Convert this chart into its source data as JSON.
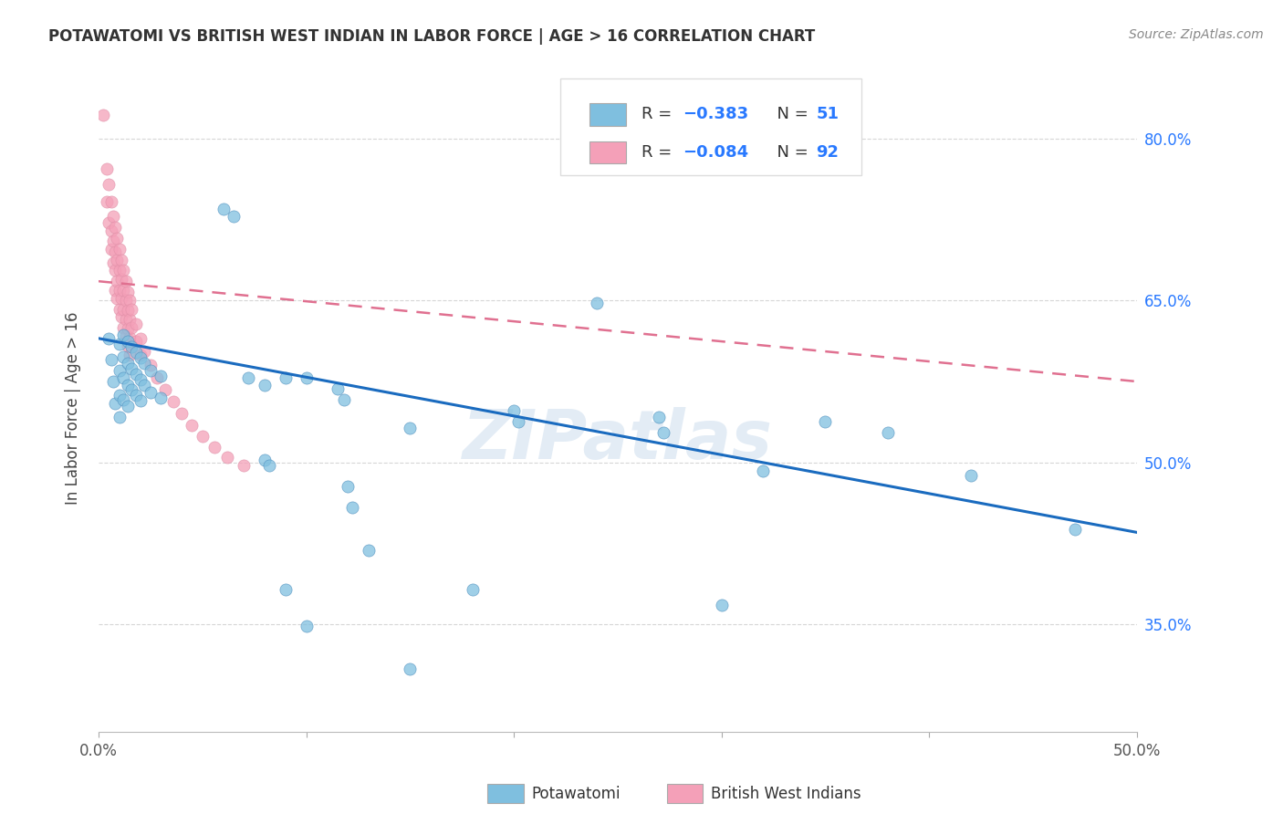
{
  "title": "POTAWATOMI VS BRITISH WEST INDIAN IN LABOR FORCE | AGE > 16 CORRELATION CHART",
  "source": "Source: ZipAtlas.com",
  "ylabel": "In Labor Force | Age > 16",
  "x_min": 0.0,
  "x_max": 0.5,
  "y_min": 0.25,
  "y_max": 0.85,
  "y_ticks": [
    0.35,
    0.5,
    0.65,
    0.8
  ],
  "y_tick_labels": [
    "35.0%",
    "50.0%",
    "65.0%",
    "80.0%"
  ],
  "blue_color": "#7fbfdf",
  "pink_color": "#f4a0b8",
  "trendline_blue": "#1a6bbf",
  "trendline_pink": "#e07090",
  "watermark": "ZIPatlas",
  "blue_trend_x0": 0.0,
  "blue_trend_y0": 0.615,
  "blue_trend_x1": 0.5,
  "blue_trend_y1": 0.435,
  "pink_trend_x0": 0.0,
  "pink_trend_y0": 0.668,
  "pink_trend_x1": 0.5,
  "pink_trend_y1": 0.575,
  "blue_points": [
    [
      0.005,
      0.615
    ],
    [
      0.006,
      0.595
    ],
    [
      0.007,
      0.575
    ],
    [
      0.008,
      0.555
    ],
    [
      0.01,
      0.61
    ],
    [
      0.01,
      0.585
    ],
    [
      0.01,
      0.562
    ],
    [
      0.01,
      0.542
    ],
    [
      0.012,
      0.618
    ],
    [
      0.012,
      0.598
    ],
    [
      0.012,
      0.578
    ],
    [
      0.012,
      0.558
    ],
    [
      0.014,
      0.612
    ],
    [
      0.014,
      0.592
    ],
    [
      0.014,
      0.572
    ],
    [
      0.014,
      0.552
    ],
    [
      0.016,
      0.607
    ],
    [
      0.016,
      0.587
    ],
    [
      0.016,
      0.567
    ],
    [
      0.018,
      0.602
    ],
    [
      0.018,
      0.582
    ],
    [
      0.018,
      0.562
    ],
    [
      0.02,
      0.597
    ],
    [
      0.02,
      0.577
    ],
    [
      0.02,
      0.557
    ],
    [
      0.022,
      0.592
    ],
    [
      0.022,
      0.572
    ],
    [
      0.025,
      0.585
    ],
    [
      0.025,
      0.565
    ],
    [
      0.03,
      0.58
    ],
    [
      0.03,
      0.56
    ],
    [
      0.06,
      0.735
    ],
    [
      0.065,
      0.728
    ],
    [
      0.072,
      0.578
    ],
    [
      0.08,
      0.572
    ],
    [
      0.09,
      0.578
    ],
    [
      0.1,
      0.578
    ],
    [
      0.115,
      0.568
    ],
    [
      0.118,
      0.558
    ],
    [
      0.12,
      0.478
    ],
    [
      0.122,
      0.458
    ],
    [
      0.13,
      0.418
    ],
    [
      0.15,
      0.532
    ],
    [
      0.2,
      0.548
    ],
    [
      0.202,
      0.538
    ],
    [
      0.24,
      0.648
    ],
    [
      0.27,
      0.542
    ],
    [
      0.272,
      0.528
    ],
    [
      0.35,
      0.538
    ],
    [
      0.42,
      0.488
    ],
    [
      0.08,
      0.502
    ],
    [
      0.082,
      0.497
    ],
    [
      0.09,
      0.382
    ],
    [
      0.1,
      0.348
    ],
    [
      0.15,
      0.308
    ],
    [
      0.18,
      0.382
    ],
    [
      0.3,
      0.368
    ],
    [
      0.32,
      0.492
    ],
    [
      0.38,
      0.528
    ],
    [
      0.47,
      0.438
    ]
  ],
  "pink_points": [
    [
      0.002,
      0.822
    ],
    [
      0.004,
      0.772
    ],
    [
      0.004,
      0.742
    ],
    [
      0.005,
      0.758
    ],
    [
      0.005,
      0.722
    ],
    [
      0.006,
      0.742
    ],
    [
      0.006,
      0.715
    ],
    [
      0.006,
      0.698
    ],
    [
      0.007,
      0.728
    ],
    [
      0.007,
      0.705
    ],
    [
      0.007,
      0.685
    ],
    [
      0.008,
      0.718
    ],
    [
      0.008,
      0.695
    ],
    [
      0.008,
      0.678
    ],
    [
      0.008,
      0.66
    ],
    [
      0.009,
      0.708
    ],
    [
      0.009,
      0.688
    ],
    [
      0.009,
      0.668
    ],
    [
      0.009,
      0.652
    ],
    [
      0.01,
      0.698
    ],
    [
      0.01,
      0.678
    ],
    [
      0.01,
      0.66
    ],
    [
      0.01,
      0.642
    ],
    [
      0.011,
      0.688
    ],
    [
      0.011,
      0.67
    ],
    [
      0.011,
      0.652
    ],
    [
      0.011,
      0.635
    ],
    [
      0.012,
      0.678
    ],
    [
      0.012,
      0.66
    ],
    [
      0.012,
      0.642
    ],
    [
      0.012,
      0.625
    ],
    [
      0.013,
      0.668
    ],
    [
      0.013,
      0.65
    ],
    [
      0.013,
      0.633
    ],
    [
      0.013,
      0.617
    ],
    [
      0.014,
      0.658
    ],
    [
      0.014,
      0.641
    ],
    [
      0.014,
      0.624
    ],
    [
      0.014,
      0.608
    ],
    [
      0.015,
      0.65
    ],
    [
      0.015,
      0.633
    ],
    [
      0.015,
      0.616
    ],
    [
      0.015,
      0.6
    ],
    [
      0.016,
      0.642
    ],
    [
      0.016,
      0.625
    ],
    [
      0.016,
      0.608
    ],
    [
      0.018,
      0.628
    ],
    [
      0.018,
      0.612
    ],
    [
      0.02,
      0.615
    ],
    [
      0.02,
      0.6
    ],
    [
      0.022,
      0.603
    ],
    [
      0.025,
      0.59
    ],
    [
      0.028,
      0.578
    ],
    [
      0.032,
      0.567
    ],
    [
      0.036,
      0.556
    ],
    [
      0.04,
      0.545
    ],
    [
      0.045,
      0.534
    ],
    [
      0.05,
      0.524
    ],
    [
      0.056,
      0.514
    ],
    [
      0.062,
      0.505
    ],
    [
      0.07,
      0.497
    ]
  ]
}
